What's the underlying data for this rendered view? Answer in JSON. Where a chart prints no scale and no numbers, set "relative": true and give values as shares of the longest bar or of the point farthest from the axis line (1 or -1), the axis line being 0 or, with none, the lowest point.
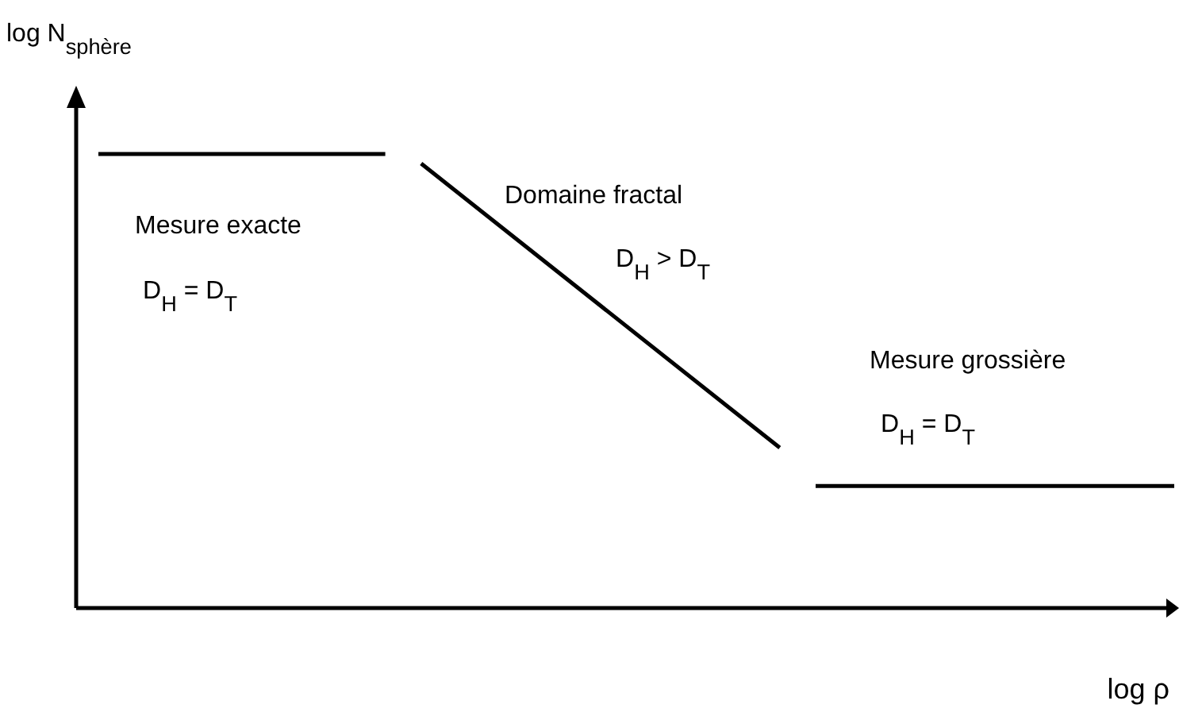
{
  "chart_data": {
    "type": "line",
    "relative": true,
    "xlabel": "log ρ",
    "ylabel": "log N$_{sphère}$",
    "categories": [
      null,
      null,
      null,
      null,
      null,
      null,
      null,
      null,
      null,
      null,
      null,
      null,
      null,
      null,
      null,
      null,
      null,
      null,
      null,
      null,
      null,
      null,
      null,
      null,
      null,
      null,
      null,
      null,
      null,
      null,
      null
    ],
    "series": [
      {
        "color": "#000000",
        "values": [
          1,
          null,
          null,
          null,
          null,
          null,
          null,
          null,
          1,
          null,
          null,
          null,
          null,
          null,
          null,
          null,
          null,
          null,
          null,
          null,
          null,
          null,
          null,
          null,
          null,
          null,
          null,
          null,
          null,
          null,
          null
        ]
      },
      {
        "color": "#000000",
        "values": [
          null,
          null,
          null,
          null,
          null,
          null,
          null,
          null,
          null,
          0.979,
          null,
          null,
          null,
          null,
          null,
          null,
          null,
          null,
          null,
          0.353,
          null,
          null,
          null,
          null,
          null,
          null,
          null,
          null,
          null,
          null,
          null
        ]
      },
      {
        "color": "#000000",
        "values": [
          null,
          null,
          null,
          null,
          null,
          null,
          null,
          null,
          null,
          null,
          null,
          null,
          null,
          null,
          null,
          null,
          null,
          null,
          null,
          null,
          0.269,
          null,
          null,
          null,
          null,
          null,
          null,
          null,
          null,
          null,
          0.269
        ]
      }
    ],
    "annotations": [
      "Mesure exacte",
      "D$_{H}$ = D$_{T}$",
      "Domaine fractal",
      "D$_{H}$ > D$_{T}$",
      "Mesure grossière",
      "D$_{H}$ = D$_{T}$"
    ]
  }
}
